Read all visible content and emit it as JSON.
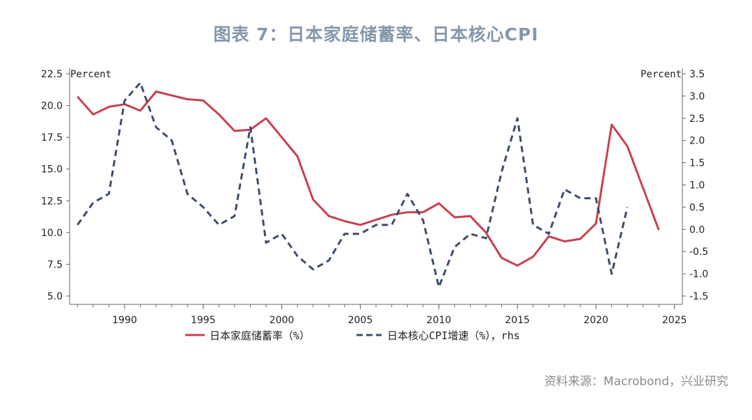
{
  "title": "图表 7：日本家庭储蓄率、日本核心CPI",
  "source": "资料来源：Macrobond，兴业研究",
  "chart_data": {
    "type": "line",
    "left_axis": {
      "unit": "Percent",
      "ylim": [
        5.0,
        22.5
      ],
      "ticks": [
        "5.0",
        "7.5",
        "10.0",
        "12.5",
        "15.0",
        "17.5",
        "20.0",
        "22.5"
      ]
    },
    "right_axis": {
      "unit": "Percent",
      "ylim": [
        -1.5,
        3.5
      ],
      "ticks": [
        "-1.5",
        "-1.0",
        "-0.5",
        "0.0",
        "0.5",
        "1.0",
        "1.5",
        "2.0",
        "2.5",
        "3.0",
        "3.5"
      ]
    },
    "x_ticks": [
      "1990",
      "1995",
      "2000",
      "2005",
      "2010",
      "2015",
      "2020",
      "2025"
    ],
    "xlim": [
      1986.5,
      2025.5
    ],
    "legend_placement": "bottom",
    "grid": false,
    "series": [
      {
        "name": "日本家庭储蓄率（%）",
        "axis": "left",
        "color": "#c8404f",
        "style": "solid",
        "x": [
          1987,
          1988,
          1989,
          1990,
          1991,
          1992,
          1993,
          1994,
          1995,
          1996,
          1997,
          1998,
          1999,
          2000,
          2001,
          2002,
          2003,
          2004,
          2005,
          2006,
          2007,
          2008,
          2009,
          2010,
          2011,
          2012,
          2013,
          2014,
          2015,
          2016,
          2017,
          2018,
          2019,
          2020,
          2021,
          2022,
          2023,
          2024
        ],
        "values": [
          20.7,
          19.3,
          19.9,
          20.1,
          19.6,
          21.1,
          20.8,
          20.5,
          20.4,
          19.3,
          18.0,
          18.1,
          19.0,
          17.5,
          16.0,
          12.6,
          11.3,
          10.9,
          10.6,
          11.0,
          11.4,
          11.6,
          11.6,
          12.3,
          11.2,
          11.3,
          10.0,
          8.0,
          7.4,
          8.1,
          9.7,
          9.3,
          9.5,
          10.7,
          18.5,
          16.8,
          13.5,
          10.2
        ]
      },
      {
        "name": "日本核心CPI增速（%），rhs",
        "axis": "right",
        "color": "#3d4d6b",
        "style": "dashed",
        "x": [
          1987,
          1988,
          1989,
          1990,
          1991,
          1992,
          1993,
          1994,
          1995,
          1996,
          1997,
          1998,
          1999,
          2000,
          2001,
          2002,
          2003,
          2004,
          2005,
          2006,
          2007,
          2008,
          2009,
          2010,
          2011,
          2012,
          2013,
          2014,
          2015,
          2016,
          2017,
          2018,
          2019,
          2020,
          2021,
          2022
        ],
        "values": [
          0.1,
          0.6,
          0.8,
          2.9,
          3.3,
          2.3,
          2.0,
          0.8,
          0.5,
          0.1,
          0.3,
          2.3,
          -0.3,
          -0.1,
          -0.6,
          -0.9,
          -0.7,
          -0.1,
          -0.1,
          0.1,
          0.1,
          0.8,
          0.2,
          -1.3,
          -0.4,
          -0.1,
          -0.2,
          1.3,
          2.5,
          0.1,
          -0.1,
          0.9,
          0.7,
          0.7,
          -1.0,
          0.5
        ]
      }
    ]
  }
}
